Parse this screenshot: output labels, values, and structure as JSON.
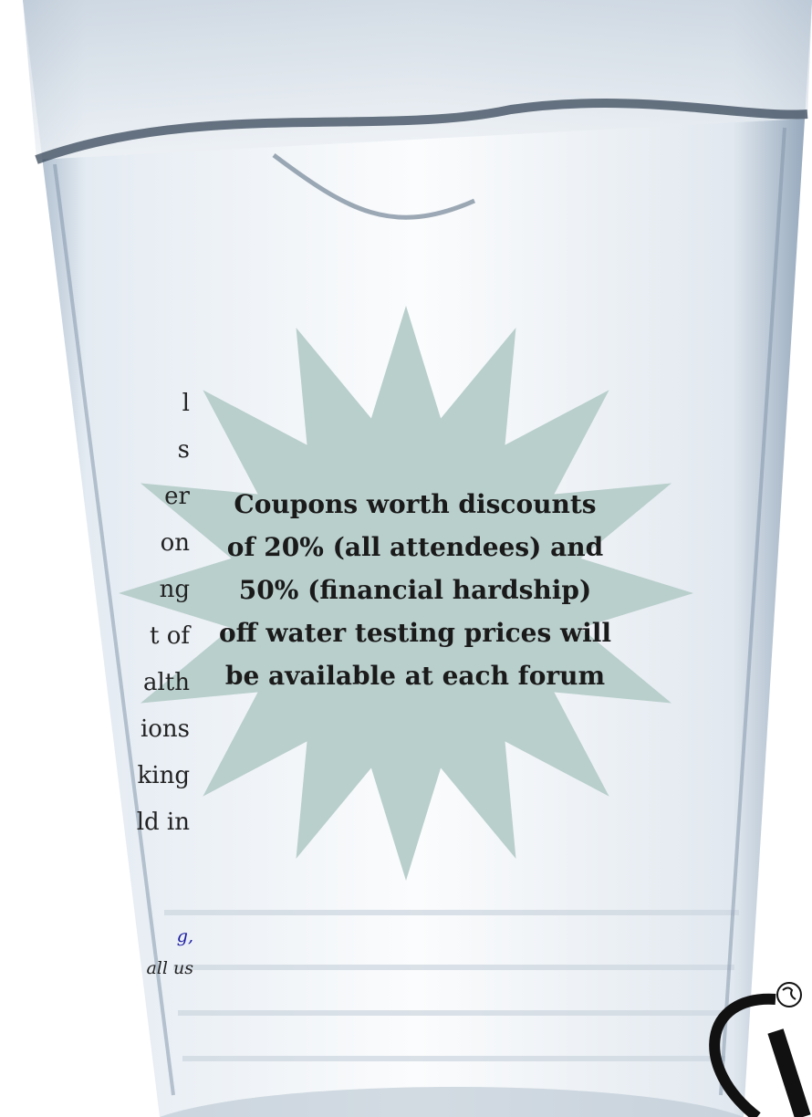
{
  "body_text_fragments": [
    "l",
    "s",
    "er",
    "on",
    "ng",
    "t  of",
    "alth",
    "ions",
    "king",
    "ld   in"
  ],
  "contact_fragments": [
    "g,",
    "all us"
  ],
  "starburst": {
    "lines": [
      "Coupons worth discounts",
      "of  20% (all attendees) and",
      "50% (financial hardship)",
      "off water testing prices will",
      "be available at each forum"
    ]
  }
}
